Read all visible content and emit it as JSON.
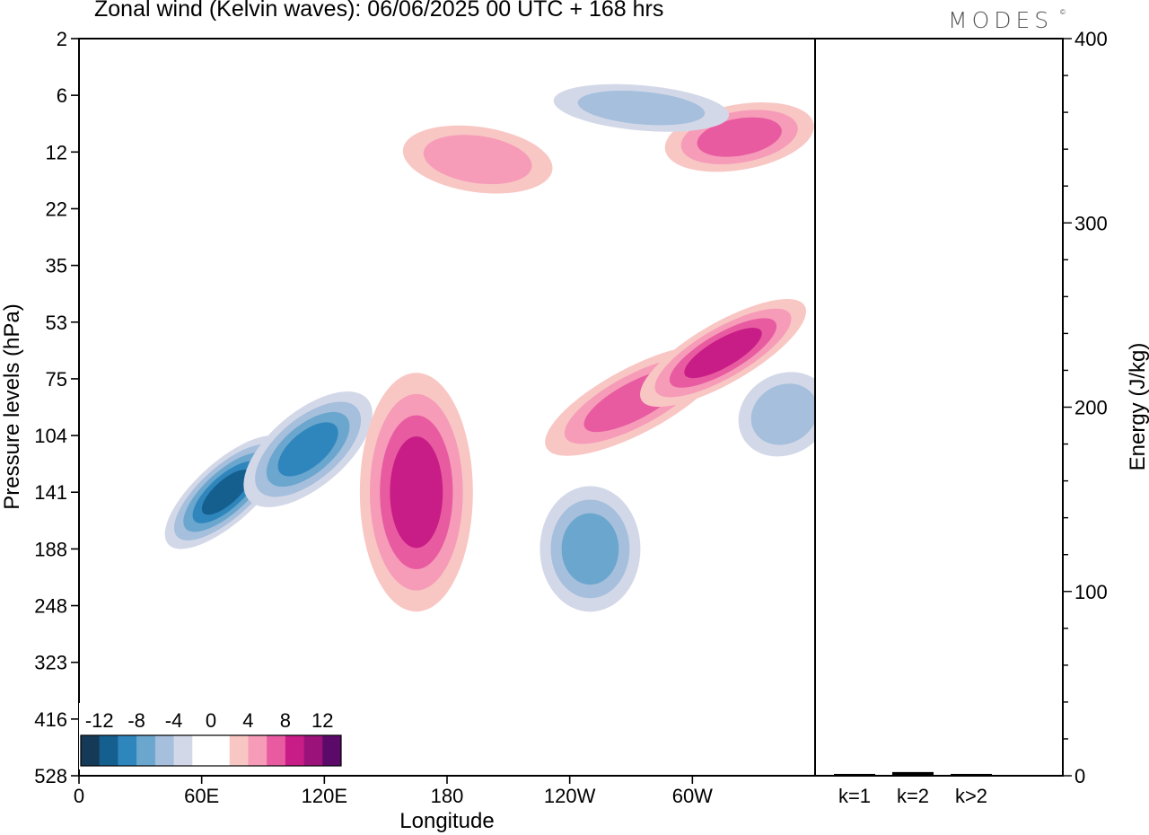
{
  "title": "Zonal wind (Kelvin waves):  06/06/2025  00 UTC  + 168 hrs",
  "brand": "MODES",
  "brand_mark": "©",
  "colors": {
    "neg": [
      "#143a57",
      "#155f8f",
      "#2f86bd",
      "#6aa6cd",
      "#a5bfdc",
      "#d3d8e8"
    ],
    "pos": [
      "#f8c7c4",
      "#f69cb8",
      "#e85ba1",
      "#c81d86",
      "#9a127a",
      "#5b0a6a"
    ],
    "zero": "#ffffff"
  },
  "chart_data": [
    {
      "type": "heatmap",
      "title": "Zonal wind (Kelvin waves):  06/06/2025  00 UTC  + 168 hrs",
      "xlabel": "Longitude",
      "ylabel": "Pressure levels (hPa)",
      "x_ticks": [
        "0",
        "60E",
        "120E",
        "180",
        "120W",
        "60W"
      ],
      "x_tick_values": [
        0,
        60,
        120,
        180,
        240,
        300
      ],
      "xlim": [
        0,
        360
      ],
      "y_ticks": [
        "2",
        "6",
        "12",
        "22",
        "35",
        "53",
        "75",
        "104",
        "141",
        "188",
        "248",
        "323",
        "416",
        "528"
      ],
      "y_scale": "log",
      "ylim": [
        528,
        2
      ],
      "colorbar_labels": [
        "-12",
        "-8",
        "-4",
        "0",
        "4",
        "8",
        "12"
      ],
      "levels": [
        -14,
        -12,
        -10,
        -8,
        -6,
        -4,
        -2,
        2,
        4,
        6,
        8,
        10,
        12,
        14
      ],
      "features": [
        {
          "x": 72,
          "p": 141,
          "value": -11
        },
        {
          "x": 112,
          "p": 112,
          "value": -9
        },
        {
          "x": 165,
          "p": 141,
          "value": 9
        },
        {
          "x": 250,
          "p": 188,
          "value": -7
        },
        {
          "x": 272,
          "p": 85,
          "value": 7
        },
        {
          "x": 315,
          "p": 64,
          "value": 8
        },
        {
          "x": 195,
          "p": 13,
          "value": 5
        },
        {
          "x": 323,
          "p": 10,
          "value": 6
        },
        {
          "x": 275,
          "p": 7,
          "value": -5
        },
        {
          "x": 345,
          "p": 92,
          "value": -5
        }
      ]
    },
    {
      "type": "bar",
      "categories": [
        "k=1",
        "k=2",
        "k>2"
      ],
      "values": [
        1,
        2,
        1
      ],
      "ylabel": "Energy (J/kg)",
      "ylim": [
        0,
        400
      ],
      "y_ticks": [
        "0",
        "100",
        "200",
        "300",
        "400"
      ]
    }
  ]
}
